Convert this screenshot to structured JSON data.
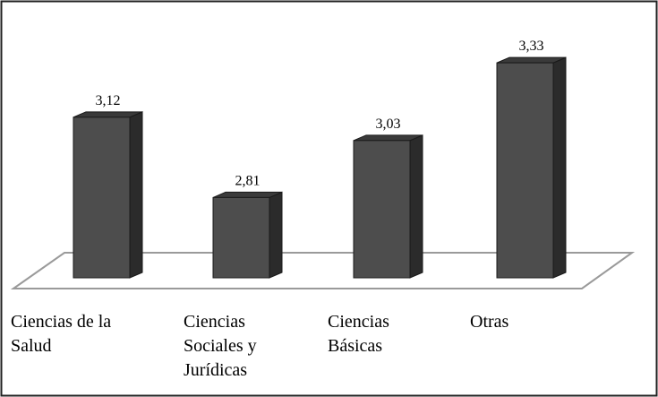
{
  "chart_data": {
    "type": "bar",
    "categories": [
      "Ciencias de la Salud",
      "Ciencias Sociales y Jurídicas",
      "Ciencias Básicas",
      "Otras"
    ],
    "values": [
      3.12,
      2.81,
      3.03,
      3.33
    ],
    "value_labels": [
      "3,12",
      "2,81",
      "3,03",
      "3,33"
    ],
    "color": "#4d4d4d",
    "ylim": [
      2.5,
      3.5
    ]
  }
}
